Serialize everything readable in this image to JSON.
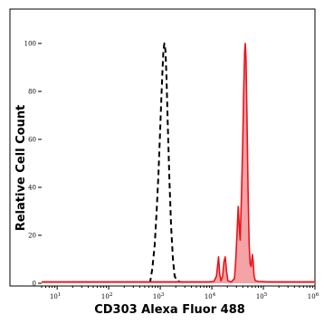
{
  "chart_data": {
    "type": "area",
    "title": "",
    "xlabel": "CD303 Alexa Fluor 488",
    "ylabel": "Relative Cell Count",
    "xscale": "log",
    "xlim": [
      5,
      1000000
    ],
    "ylim": [
      0,
      100
    ],
    "grid": false,
    "x_ticks": [
      {
        "value": 10,
        "base": "10",
        "exp": "1"
      },
      {
        "value": 100,
        "base": "10",
        "exp": "2"
      },
      {
        "value": 1000,
        "base": "10",
        "exp": "3"
      },
      {
        "value": 10000,
        "base": "10",
        "exp": "4"
      },
      {
        "value": 100000,
        "base": "10",
        "exp": "5"
      },
      {
        "value": 1000000,
        "base": "10",
        "exp": "6"
      }
    ],
    "y_ticks": [
      0,
      20,
      40,
      60,
      80,
      100
    ],
    "series": [
      {
        "style": "dashed",
        "color": "#000000",
        "fill": "none",
        "points": [
          [
            630,
            0
          ],
          [
            700,
            6
          ],
          [
            780,
            16
          ],
          [
            850,
            30
          ],
          [
            920,
            45
          ],
          [
            980,
            60
          ],
          [
            1040,
            75
          ],
          [
            1100,
            88
          ],
          [
            1150,
            97
          ],
          [
            1200,
            100
          ],
          [
            1260,
            97
          ],
          [
            1320,
            86
          ],
          [
            1400,
            66
          ],
          [
            1500,
            44
          ],
          [
            1620,
            24
          ],
          [
            1760,
            10
          ],
          [
            1900,
            3
          ],
          [
            2100,
            1
          ],
          [
            2500,
            0.5
          ],
          [
            3000,
            0
          ]
        ]
      },
      {
        "style": "solid",
        "color": "#e8131a",
        "fill": "#f4a3a6",
        "points": [
          [
            5,
            0.6
          ],
          [
            9000,
            0.6
          ],
          [
            11000,
            0.8
          ],
          [
            12300,
            3
          ],
          [
            12900,
            7
          ],
          [
            13500,
            11
          ],
          [
            14200,
            4
          ],
          [
            15000,
            1
          ],
          [
            16200,
            3
          ],
          [
            17200,
            9
          ],
          [
            18200,
            11
          ],
          [
            19300,
            5
          ],
          [
            20500,
            1
          ],
          [
            24000,
            0.6
          ],
          [
            27500,
            2
          ],
          [
            29000,
            9
          ],
          [
            31000,
            22
          ],
          [
            32500,
            32
          ],
          [
            34000,
            24
          ],
          [
            35500,
            18
          ],
          [
            37500,
            36
          ],
          [
            39500,
            56
          ],
          [
            41500,
            80
          ],
          [
            43200,
            96
          ],
          [
            44500,
            100
          ],
          [
            46000,
            94
          ],
          [
            48000,
            70
          ],
          [
            50500,
            38
          ],
          [
            53000,
            16
          ],
          [
            55500,
            8
          ],
          [
            58000,
            7
          ],
          [
            61000,
            12
          ],
          [
            63500,
            9
          ],
          [
            66000,
            3
          ],
          [
            70000,
            1
          ],
          [
            80000,
            0.8
          ],
          [
            120000,
            0.6
          ],
          [
            1000000,
            0.6
          ]
        ]
      }
    ]
  }
}
